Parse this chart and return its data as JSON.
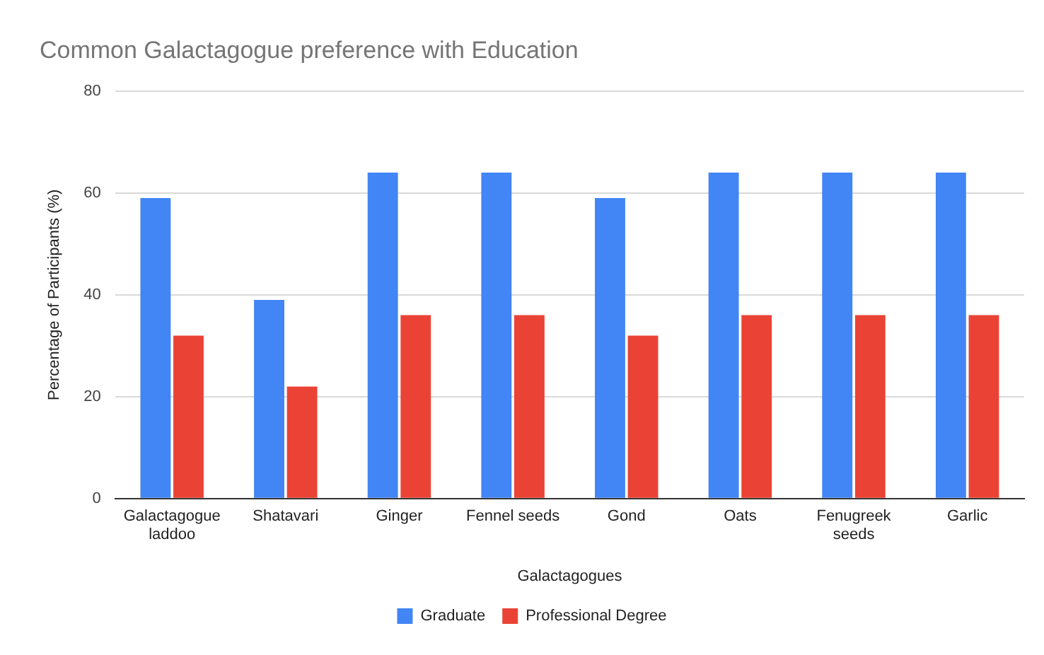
{
  "chart_data": {
    "type": "bar",
    "title": "Common Galactagogue preference with Education",
    "xlabel": "Galactagogues",
    "ylabel": "Percentage of Participants (%)",
    "categories": [
      "Galactagogue laddoo",
      "Shatavari",
      "Ginger",
      "Fennel seeds",
      "Gond",
      "Oats",
      "Fenugreek seeds",
      "Garlic"
    ],
    "series": [
      {
        "name": "Graduate",
        "color": "#4285f4",
        "values": [
          59,
          39,
          64,
          64,
          59,
          64,
          64,
          64
        ]
      },
      {
        "name": "Professional Degree",
        "color": "#ea4335",
        "values": [
          32,
          22,
          36,
          36,
          32,
          36,
          36,
          36
        ]
      }
    ],
    "ylim": [
      0,
      80
    ],
    "yticks": [
      0,
      20,
      40,
      60,
      80
    ],
    "grid": "y",
    "legend": "bottom"
  }
}
